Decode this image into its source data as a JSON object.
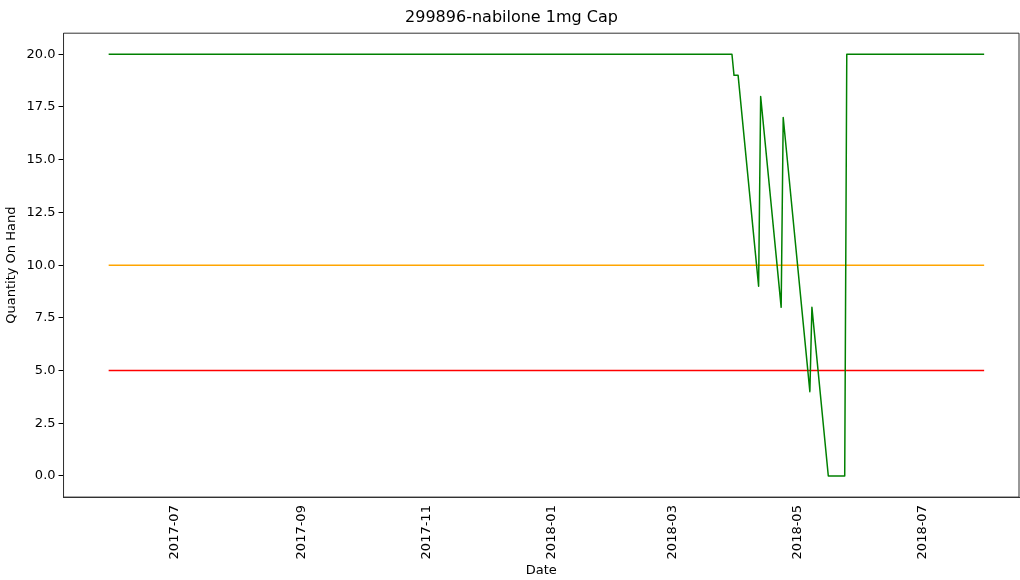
{
  "chart_data": {
    "type": "line",
    "title": "299896-nabilone 1mg Cap",
    "xlabel": "Date",
    "ylabel": "Quantity On Hand",
    "series": [
      {
        "color": "#008000",
        "x": [
          "2017-05-30",
          "2018-03-30",
          "2018-03-31",
          "2018-04-02",
          "2018-04-12",
          "2018-04-13",
          "2018-04-23",
          "2018-04-24",
          "2018-05-07",
          "2018-05-08",
          "2018-05-16",
          "2018-05-24",
          "2018-05-25",
          "2018-07-31"
        ],
        "values": [
          20,
          20,
          19,
          19,
          9,
          18,
          8,
          17,
          4,
          8,
          0,
          0,
          20,
          20
        ]
      },
      {
        "color": "#ffa500",
        "x": [
          "2017-05-30",
          "2018-07-31"
        ],
        "values": [
          10,
          10
        ]
      },
      {
        "color": "#ff0000",
        "x": [
          "2017-05-30",
          "2018-07-31"
        ],
        "values": [
          5,
          5
        ]
      }
    ],
    "xlim": [
      "2017-05-08",
      "2018-08-17"
    ],
    "xticks": [
      "2017-07",
      "2017-09",
      "2017-11",
      "2018-01",
      "2018-03",
      "2018-05",
      "2018-07"
    ],
    "ylim": [
      -1,
      21
    ],
    "yticks": [
      {
        "value": 0,
        "label": "0.0"
      },
      {
        "value": 2.5,
        "label": "2.5"
      },
      {
        "value": 5,
        "label": "5.0"
      },
      {
        "value": 7.5,
        "label": "7.5"
      },
      {
        "value": 10,
        "label": "10.0"
      },
      {
        "value": 12.5,
        "label": "12.5"
      },
      {
        "value": 15,
        "label": "15.0"
      },
      {
        "value": 17.5,
        "label": "17.5"
      },
      {
        "value": 20,
        "label": "20.0"
      }
    ],
    "grid": false,
    "legend": false,
    "marker": "none",
    "line_style": "solid"
  }
}
